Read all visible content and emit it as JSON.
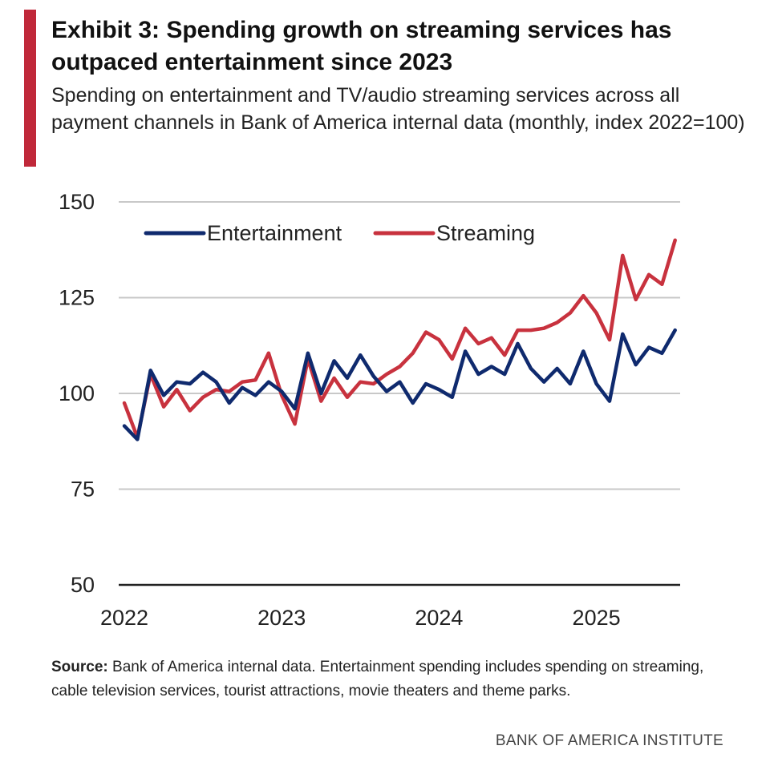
{
  "header": {
    "title": "Exhibit 3: Spending growth on streaming services has outpaced entertainment since 2023",
    "subtitle": "Spending on entertainment and TV/audio streaming services across all payment channels in Bank of America internal data (monthly, index 2022=100)"
  },
  "footer": {
    "source_label": "Source:",
    "source_text": "Bank of America internal data. Entertainment spending includes spending on streaming, cable television services, tourist attractions, movie theaters and theme parks.",
    "brand": "BANK OF AMERICA INSTITUTE"
  },
  "colors": {
    "accent": "#c0283a",
    "entertainment": "#0f2a6e",
    "streaming": "#c8323e",
    "grid": "#c8c8c8",
    "axis": "#222222"
  },
  "chart_data": {
    "type": "line",
    "x_unit": "month",
    "x_start": "2022-01",
    "x_ticks": [
      "2022",
      "2023",
      "2024",
      "2025"
    ],
    "ylim": [
      50,
      150
    ],
    "y_ticks": [
      50,
      75,
      100,
      125,
      150
    ],
    "grid": true,
    "legend_position": "top-left",
    "series": [
      {
        "name": "Entertainment",
        "values": [
          91.5,
          88,
          106,
          99.5,
          103,
          102.5,
          105.5,
          103,
          97.5,
          101.5,
          99.5,
          103,
          100.5,
          96,
          110.5,
          100,
          108.5,
          104,
          110,
          104.5,
          100.5,
          103,
          97.5,
          102.5,
          101,
          99,
          111,
          105,
          107,
          105,
          113,
          106.5,
          103,
          106.5,
          102.5,
          111,
          102.5,
          98,
          115.5,
          107.5,
          112,
          110.5,
          116.5
        ]
      },
      {
        "name": "Streaming",
        "values": [
          97.5,
          88.5,
          105,
          96.5,
          101,
          95.5,
          99,
          101,
          100.5,
          103,
          103.5,
          110.5,
          99.5,
          92,
          109,
          98,
          104,
          99,
          103,
          102.5,
          105,
          107,
          110.5,
          116,
          114,
          109,
          117,
          113,
          114.5,
          110,
          116.5,
          116.5,
          117,
          118.5,
          121,
          125.5,
          121,
          114,
          136,
          124.5,
          131,
          128.5,
          140
        ]
      }
    ]
  }
}
